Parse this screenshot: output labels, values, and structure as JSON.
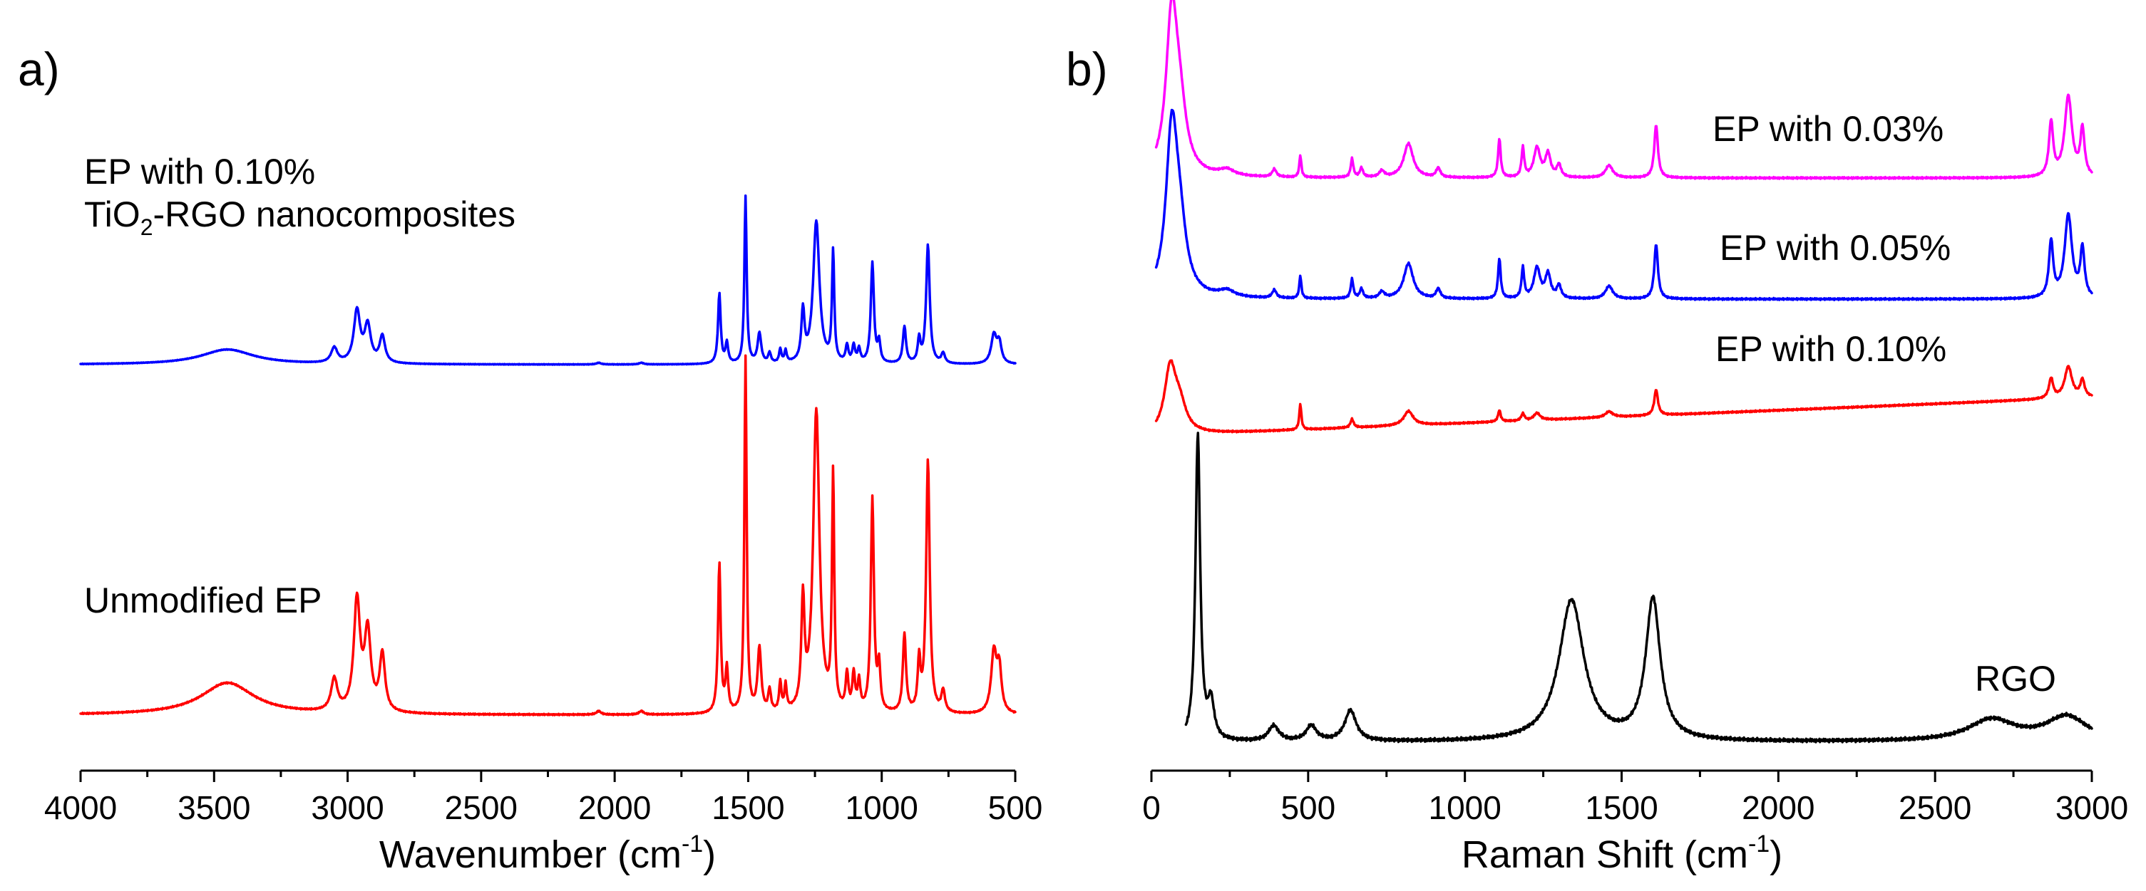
{
  "chart_data": [
    {
      "panel_label": "a)",
      "type": "line",
      "xlabel": "Wavenumber (cm",
      "xlabel_sup": "-1",
      "xlabel_end": ")",
      "xlim": [
        4000,
        500
      ],
      "xticks": [
        "4000",
        "3500",
        "3000",
        "2500",
        "2000",
        "1500",
        "1000",
        "500"
      ],
      "series": [
        {
          "name": "EP with 0.10% TiO2-RGO nanocomposites",
          "label_line1": "EP with 0.10%",
          "label_line2_pre": "TiO",
          "label_line2_sub": "2",
          "label_line2_post": "-RGO nanocomposites",
          "color": "#0000ff",
          "baseline": 0.0,
          "peaks": [
            [
              3450,
              0.09,
              120
            ],
            [
              3050,
              0.09,
              14
            ],
            [
              2965,
              0.31,
              14
            ],
            [
              2925,
              0.22,
              14
            ],
            [
              2870,
              0.16,
              12
            ],
            [
              2060,
              0.01,
              10
            ],
            [
              1900,
              0.01,
              10
            ],
            [
              1608,
              0.42,
              6
            ],
            [
              1580,
              0.12,
              6
            ],
            [
              1510,
              1.0,
              5
            ],
            [
              1458,
              0.18,
              8
            ],
            [
              1420,
              0.06,
              6
            ],
            [
              1380,
              0.08,
              5
            ],
            [
              1360,
              0.07,
              5
            ],
            [
              1295,
              0.3,
              7
            ],
            [
              1245,
              0.85,
              14
            ],
            [
              1182,
              0.66,
              5
            ],
            [
              1130,
              0.1,
              6
            ],
            [
              1105,
              0.1,
              6
            ],
            [
              1085,
              0.08,
              6
            ],
            [
              1035,
              0.6,
              7
            ],
            [
              1010,
              0.12,
              6
            ],
            [
              915,
              0.22,
              7
            ],
            [
              860,
              0.14,
              6
            ],
            [
              827,
              0.71,
              8
            ],
            [
              770,
              0.06,
              8
            ],
            [
              580,
              0.17,
              12
            ],
            [
              560,
              0.12,
              10
            ]
          ]
        },
        {
          "name": "Unmodified EP",
          "label": "Unmodified EP",
          "color": "#ff0000",
          "baseline": 0.0,
          "peaks": [
            [
              3450,
              0.09,
              120
            ],
            [
              3050,
              0.09,
              14
            ],
            [
              2965,
              0.31,
              14
            ],
            [
              2925,
              0.22,
              14
            ],
            [
              2870,
              0.16,
              12
            ],
            [
              2060,
              0.01,
              10
            ],
            [
              1900,
              0.01,
              10
            ],
            [
              1608,
              0.42,
              6
            ],
            [
              1580,
              0.12,
              6
            ],
            [
              1510,
              1.0,
              5
            ],
            [
              1458,
              0.18,
              8
            ],
            [
              1420,
              0.06,
              6
            ],
            [
              1380,
              0.08,
              5
            ],
            [
              1360,
              0.07,
              5
            ],
            [
              1295,
              0.3,
              7
            ],
            [
              1245,
              0.85,
              14
            ],
            [
              1182,
              0.66,
              5
            ],
            [
              1130,
              0.1,
              6
            ],
            [
              1105,
              0.1,
              6
            ],
            [
              1085,
              0.08,
              6
            ],
            [
              1035,
              0.6,
              7
            ],
            [
              1010,
              0.12,
              6
            ],
            [
              915,
              0.22,
              7
            ],
            [
              860,
              0.14,
              6
            ],
            [
              827,
              0.71,
              8
            ],
            [
              770,
              0.06,
              8
            ],
            [
              580,
              0.17,
              12
            ],
            [
              560,
              0.12,
              10
            ]
          ]
        }
      ]
    },
    {
      "panel_label": "b)",
      "type": "line",
      "xlabel": "Raman Shift (cm",
      "xlabel_sup": "-1",
      "xlabel_end": ")",
      "xlim": [
        0,
        3000
      ],
      "xticks": [
        "0",
        "500",
        "1000",
        "1500",
        "2000",
        "2500",
        "3000"
      ],
      "series": [
        {
          "name": "EP with 0.03%",
          "label": "EP with 0.03%",
          "color": "#ff00ff",
          "baseline": 0.0,
          "drift": 0.0,
          "peaks": [
            [
              65,
              1.0,
              22
            ],
            [
              90,
              0.35,
              25
            ],
            [
              240,
              0.04,
              30
            ],
            [
              392,
              0.05,
              8
            ],
            [
              475,
              0.14,
              4
            ],
            [
              640,
              0.12,
              5
            ],
            [
              670,
              0.06,
              6
            ],
            [
              735,
              0.04,
              10
            ],
            [
              820,
              0.22,
              18
            ],
            [
              915,
              0.06,
              8
            ],
            [
              1110,
              0.25,
              5
            ],
            [
              1185,
              0.19,
              5
            ],
            [
              1230,
              0.19,
              12
            ],
            [
              1265,
              0.15,
              10
            ],
            [
              1300,
              0.08,
              8
            ],
            [
              1460,
              0.08,
              14
            ],
            [
              1610,
              0.34,
              7
            ],
            [
              2870,
              0.35,
              8
            ],
            [
              2925,
              0.52,
              14
            ],
            [
              2970,
              0.3,
              8
            ]
          ]
        },
        {
          "name": "EP with 0.05%",
          "label": "EP with 0.05%",
          "color": "#0000ff",
          "baseline": 0.0,
          "drift": 0.0,
          "peaks": [
            [
              65,
              1.0,
              22
            ],
            [
              90,
              0.35,
              25
            ],
            [
              240,
              0.04,
              30
            ],
            [
              392,
              0.05,
              8
            ],
            [
              475,
              0.14,
              4
            ],
            [
              640,
              0.12,
              5
            ],
            [
              670,
              0.06,
              6
            ],
            [
              735,
              0.04,
              10
            ],
            [
              820,
              0.22,
              18
            ],
            [
              915,
              0.06,
              8
            ],
            [
              1110,
              0.25,
              5
            ],
            [
              1185,
              0.19,
              5
            ],
            [
              1230,
              0.19,
              12
            ],
            [
              1265,
              0.15,
              10
            ],
            [
              1300,
              0.08,
              8
            ],
            [
              1460,
              0.08,
              14
            ],
            [
              1610,
              0.34,
              7
            ],
            [
              2870,
              0.35,
              8
            ],
            [
              2925,
              0.52,
              14
            ],
            [
              2970,
              0.3,
              8
            ]
          ]
        },
        {
          "name": "EP with 0.10%",
          "label": "EP with 0.10%",
          "color": "#ff0000",
          "baseline": 0.0,
          "drift": 0.27,
          "peaks": [
            [
              60,
              0.45,
              22
            ],
            [
              90,
              0.18,
              25
            ],
            [
              475,
              0.18,
              4
            ],
            [
              640,
              0.06,
              6
            ],
            [
              820,
              0.1,
              18
            ],
            [
              1110,
              0.08,
              5
            ],
            [
              1185,
              0.05,
              6
            ],
            [
              1230,
              0.05,
              12
            ],
            [
              1460,
              0.04,
              14
            ],
            [
              1610,
              0.18,
              7
            ],
            [
              2870,
              0.14,
              8
            ],
            [
              2925,
              0.22,
              14
            ],
            [
              2970,
              0.12,
              8
            ]
          ]
        },
        {
          "name": "RGO",
          "label": "RGO",
          "color": "#000000",
          "baseline": 0.0,
          "drift": 0.0,
          "peaks": [
            [
              148,
              1.0,
              9
            ],
            [
              190,
              0.12,
              12
            ],
            [
              390,
              0.05,
              20
            ],
            [
              510,
              0.05,
              20
            ],
            [
              635,
              0.1,
              22
            ],
            [
              1340,
              0.46,
              48
            ],
            [
              1600,
              0.46,
              28
            ],
            [
              2680,
              0.07,
              90
            ],
            [
              2920,
              0.08,
              80
            ]
          ]
        }
      ]
    }
  ]
}
